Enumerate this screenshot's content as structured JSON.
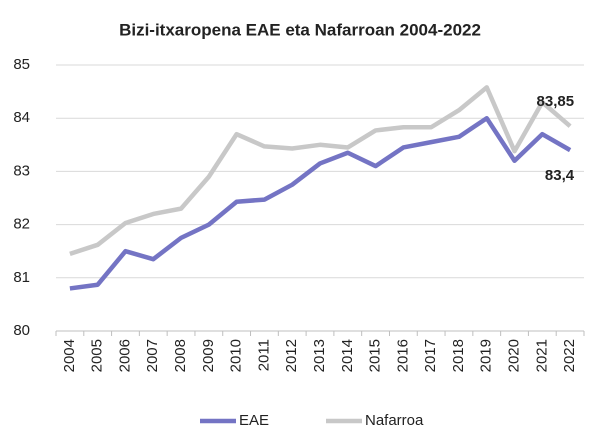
{
  "chart_data": {
    "type": "line",
    "title": "Bizi-itxaropena EAE eta Nafarroan 2004-2022",
    "categories": [
      "2004",
      "2005",
      "2006",
      "2007",
      "2008",
      "2009",
      "2010",
      "2011",
      "2012",
      "2013",
      "2014",
      "2015",
      "2016",
      "2017",
      "2018",
      "2019",
      "2020",
      "2021",
      "2022"
    ],
    "series": [
      {
        "name": "EAE",
        "color": "#7474c4",
        "values": [
          80.8,
          80.87,
          81.5,
          81.35,
          81.75,
          82.0,
          82.43,
          82.47,
          82.75,
          83.15,
          83.35,
          83.1,
          83.45,
          83.55,
          83.65,
          84.0,
          83.2,
          83.7,
          83.4
        ],
        "value_labels": [
          null,
          null,
          null,
          null,
          null,
          null,
          null,
          null,
          null,
          null,
          null,
          null,
          null,
          null,
          null,
          null,
          null,
          null,
          "83,4"
        ]
      },
      {
        "name": "Nafarroa",
        "color": "#c8c8c8",
        "values": [
          81.45,
          81.62,
          82.03,
          82.2,
          82.3,
          82.9,
          83.7,
          83.47,
          83.43,
          83.5,
          83.45,
          83.77,
          83.83,
          83.83,
          84.15,
          84.58,
          83.38,
          84.3,
          83.85
        ],
        "value_labels": [
          null,
          null,
          null,
          null,
          null,
          null,
          null,
          null,
          null,
          null,
          null,
          null,
          null,
          null,
          null,
          null,
          null,
          null,
          "83,85"
        ]
      }
    ],
    "ylim": [
      80,
      85
    ],
    "yticks": [
      80,
      81,
      82,
      83,
      84,
      85
    ],
    "grid": true,
    "legend": "bottom"
  }
}
